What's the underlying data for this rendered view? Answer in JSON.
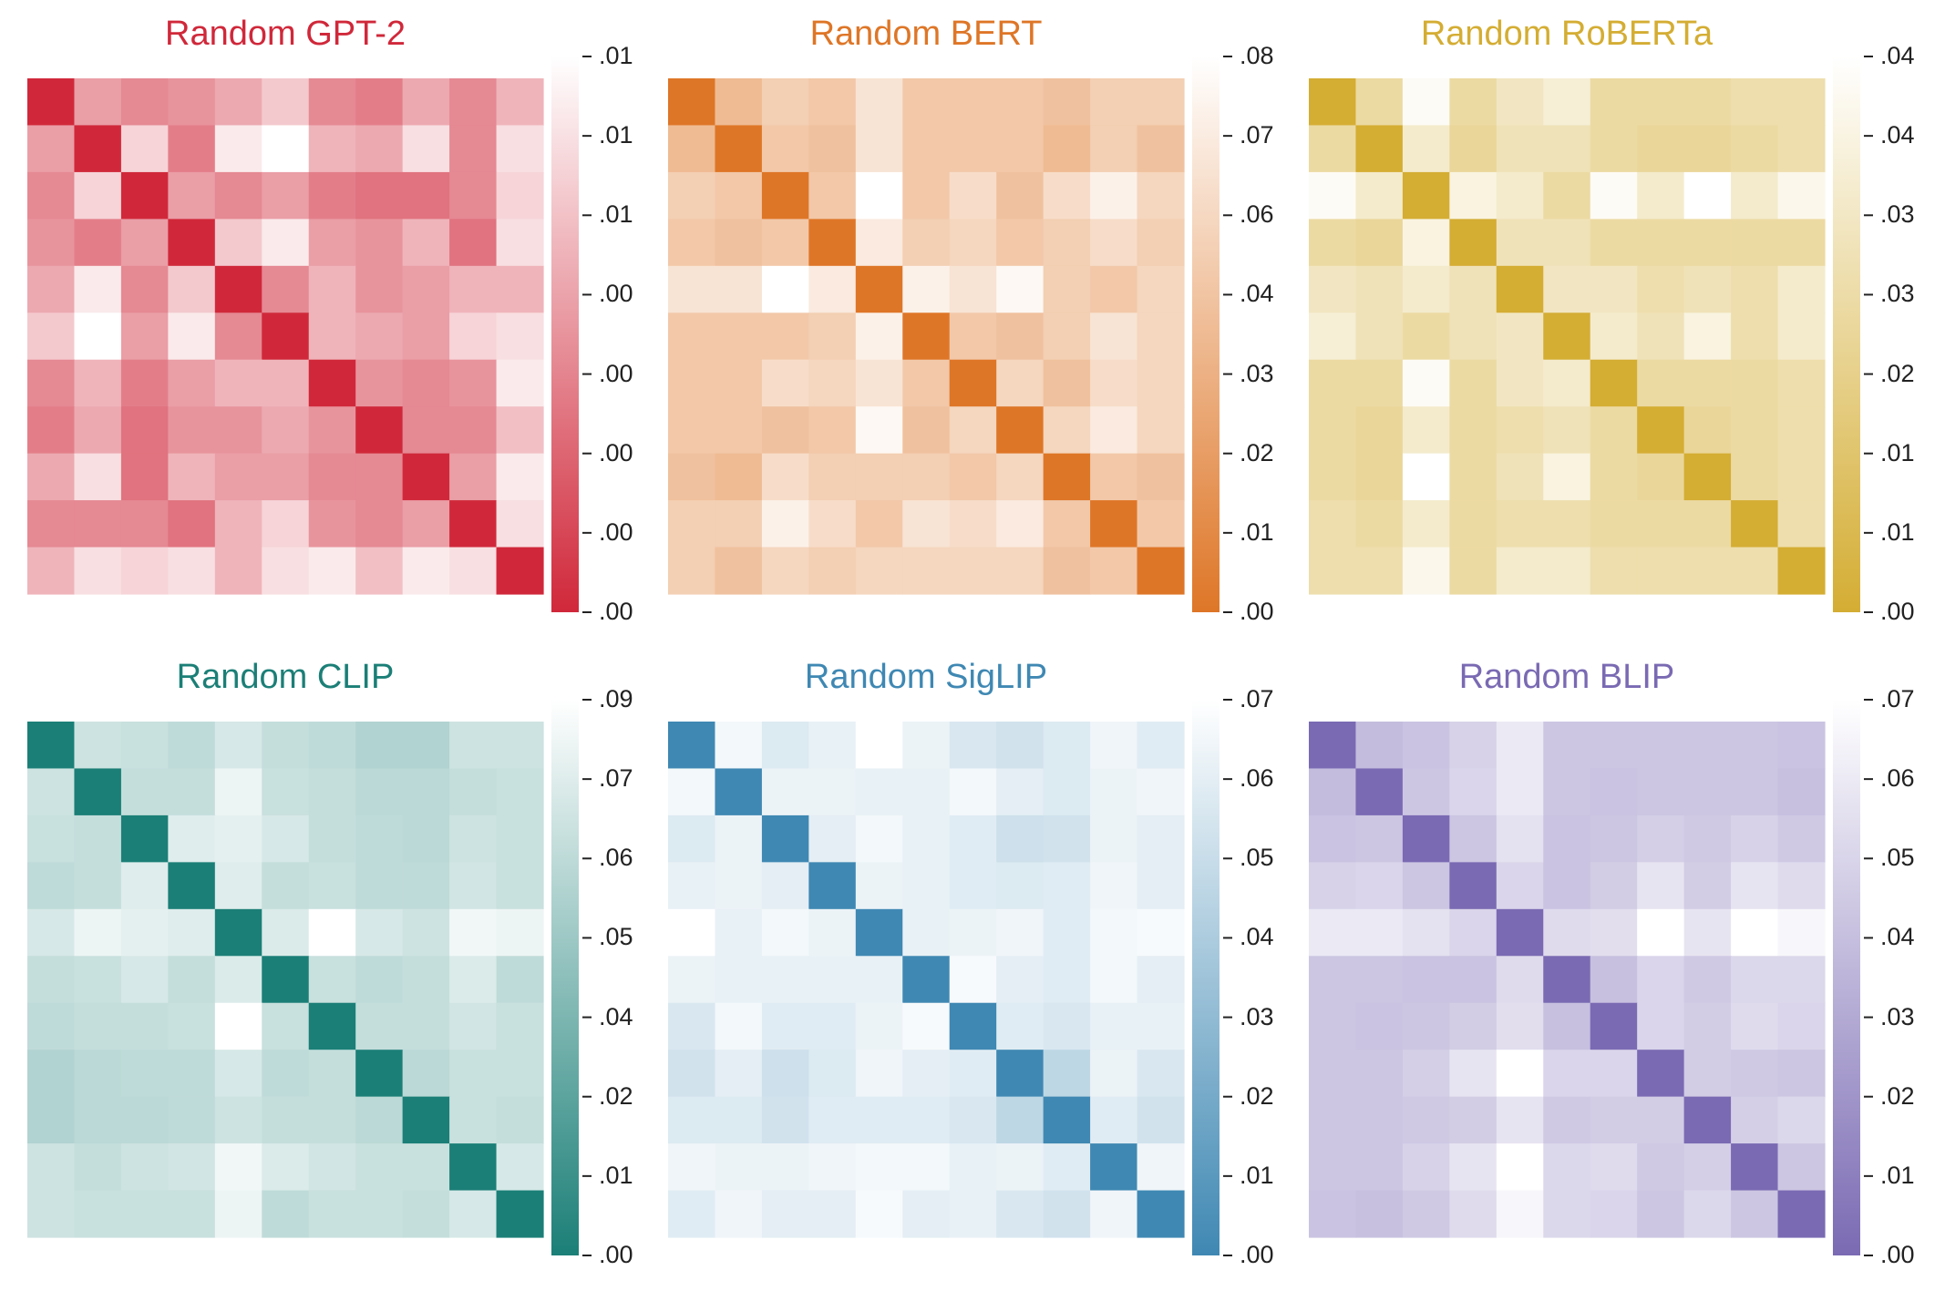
{
  "chart_data": [
    {
      "type": "heatmap",
      "title": "Random GPT-2",
      "color": "#d0283a",
      "colorbar_ticks": [
        ".01",
        ".01",
        ".01",
        ".00",
        ".00",
        ".00",
        ".00",
        ".00"
      ],
      "grid": [
        [
          0.0,
          0.55,
          0.45,
          0.5,
          0.6,
          0.75,
          0.45,
          0.4,
          0.6,
          0.45,
          0.65
        ],
        [
          0.55,
          0.0,
          0.8,
          0.4,
          0.9,
          1.0,
          0.65,
          0.6,
          0.85,
          0.45,
          0.85
        ],
        [
          0.45,
          0.8,
          0.0,
          0.55,
          0.45,
          0.55,
          0.4,
          0.35,
          0.35,
          0.45,
          0.8
        ],
        [
          0.5,
          0.4,
          0.55,
          0.0,
          0.75,
          0.9,
          0.55,
          0.5,
          0.65,
          0.35,
          0.85
        ],
        [
          0.6,
          0.9,
          0.45,
          0.75,
          0.0,
          0.45,
          0.65,
          0.5,
          0.55,
          0.65,
          0.65
        ],
        [
          0.75,
          1.0,
          0.55,
          0.9,
          0.45,
          0.0,
          0.65,
          0.6,
          0.55,
          0.8,
          0.85
        ],
        [
          0.45,
          0.65,
          0.4,
          0.55,
          0.65,
          0.65,
          0.0,
          0.5,
          0.45,
          0.5,
          0.9
        ],
        [
          0.4,
          0.6,
          0.35,
          0.5,
          0.5,
          0.6,
          0.5,
          0.0,
          0.45,
          0.45,
          0.7
        ],
        [
          0.6,
          0.85,
          0.35,
          0.65,
          0.55,
          0.55,
          0.45,
          0.45,
          0.0,
          0.55,
          0.9
        ],
        [
          0.45,
          0.45,
          0.45,
          0.35,
          0.65,
          0.8,
          0.5,
          0.45,
          0.55,
          0.0,
          0.85
        ],
        [
          0.65,
          0.85,
          0.8,
          0.85,
          0.65,
          0.85,
          0.9,
          0.7,
          0.9,
          0.85,
          0.0
        ]
      ]
    },
    {
      "type": "heatmap",
      "title": "Random BERT",
      "color": "#de7627",
      "colorbar_ticks": [
        ".08",
        ".07",
        ".06",
        ".04",
        ".03",
        ".02",
        ".01",
        ".00"
      ],
      "grid": [
        [
          0.0,
          0.5,
          0.65,
          0.6,
          0.8,
          0.6,
          0.6,
          0.6,
          0.55,
          0.65,
          0.65
        ],
        [
          0.5,
          0.0,
          0.6,
          0.55,
          0.8,
          0.6,
          0.6,
          0.6,
          0.5,
          0.65,
          0.55
        ],
        [
          0.65,
          0.6,
          0.0,
          0.6,
          1.0,
          0.6,
          0.75,
          0.55,
          0.75,
          0.9,
          0.7
        ],
        [
          0.6,
          0.55,
          0.6,
          0.0,
          0.85,
          0.65,
          0.7,
          0.6,
          0.65,
          0.75,
          0.65
        ],
        [
          0.8,
          0.8,
          1.0,
          0.85,
          0.0,
          0.9,
          0.8,
          0.95,
          0.65,
          0.6,
          0.7
        ],
        [
          0.6,
          0.6,
          0.6,
          0.65,
          0.9,
          0.0,
          0.6,
          0.55,
          0.65,
          0.8,
          0.7
        ],
        [
          0.6,
          0.6,
          0.75,
          0.7,
          0.8,
          0.6,
          0.0,
          0.7,
          0.55,
          0.75,
          0.7
        ],
        [
          0.6,
          0.6,
          0.55,
          0.6,
          0.95,
          0.55,
          0.7,
          0.0,
          0.7,
          0.85,
          0.7
        ],
        [
          0.55,
          0.5,
          0.75,
          0.65,
          0.65,
          0.65,
          0.6,
          0.7,
          0.0,
          0.6,
          0.55
        ],
        [
          0.65,
          0.65,
          0.9,
          0.75,
          0.6,
          0.8,
          0.75,
          0.85,
          0.6,
          0.0,
          0.6
        ],
        [
          0.65,
          0.55,
          0.7,
          0.65,
          0.7,
          0.7,
          0.7,
          0.7,
          0.55,
          0.6,
          0.0
        ]
      ]
    },
    {
      "type": "heatmap",
      "title": "Random RoBERTa",
      "color": "#d4ad33",
      "colorbar_ticks": [
        ".04",
        ".04",
        ".03",
        ".03",
        ".02",
        ".01",
        ".01",
        ".00"
      ],
      "grid": [
        [
          0.0,
          0.55,
          0.95,
          0.55,
          0.7,
          0.8,
          0.55,
          0.55,
          0.55,
          0.6,
          0.6
        ],
        [
          0.55,
          0.0,
          0.75,
          0.5,
          0.65,
          0.65,
          0.55,
          0.5,
          0.5,
          0.55,
          0.6
        ],
        [
          0.95,
          0.75,
          0.0,
          0.85,
          0.75,
          0.55,
          0.95,
          0.75,
          1.0,
          0.75,
          0.9
        ],
        [
          0.55,
          0.5,
          0.85,
          0.0,
          0.65,
          0.65,
          0.55,
          0.55,
          0.55,
          0.55,
          0.55
        ],
        [
          0.7,
          0.65,
          0.75,
          0.65,
          0.0,
          0.7,
          0.7,
          0.6,
          0.65,
          0.6,
          0.75
        ],
        [
          0.8,
          0.65,
          0.55,
          0.65,
          0.7,
          0.0,
          0.75,
          0.65,
          0.85,
          0.6,
          0.75
        ],
        [
          0.55,
          0.55,
          0.95,
          0.55,
          0.7,
          0.75,
          0.0,
          0.55,
          0.55,
          0.55,
          0.6
        ],
        [
          0.55,
          0.5,
          0.75,
          0.55,
          0.6,
          0.65,
          0.55,
          0.0,
          0.5,
          0.55,
          0.6
        ],
        [
          0.55,
          0.5,
          1.0,
          0.55,
          0.65,
          0.85,
          0.55,
          0.5,
          0.0,
          0.55,
          0.6
        ],
        [
          0.6,
          0.55,
          0.75,
          0.55,
          0.6,
          0.6,
          0.55,
          0.55,
          0.55,
          0.0,
          0.6
        ],
        [
          0.6,
          0.6,
          0.9,
          0.55,
          0.75,
          0.75,
          0.6,
          0.6,
          0.6,
          0.6,
          0.0
        ]
      ]
    },
    {
      "type": "heatmap",
      "title": "Random CLIP",
      "color": "#1b7f77",
      "colorbar_ticks": [
        ".09",
        ".07",
        ".06",
        ".05",
        ".04",
        ".02",
        ".01",
        ".00"
      ],
      "grid": [
        [
          0.0,
          0.78,
          0.76,
          0.72,
          0.82,
          0.74,
          0.72,
          0.66,
          0.66,
          0.78,
          0.78
        ],
        [
          0.78,
          0.0,
          0.74,
          0.74,
          0.92,
          0.76,
          0.74,
          0.7,
          0.7,
          0.74,
          0.76
        ],
        [
          0.76,
          0.74,
          0.0,
          0.86,
          0.88,
          0.82,
          0.74,
          0.72,
          0.7,
          0.78,
          0.76
        ],
        [
          0.72,
          0.74,
          0.86,
          0.0,
          0.86,
          0.74,
          0.76,
          0.72,
          0.72,
          0.8,
          0.76
        ],
        [
          0.82,
          0.92,
          0.88,
          0.86,
          0.0,
          0.84,
          1.0,
          0.82,
          0.78,
          0.94,
          0.92
        ],
        [
          0.74,
          0.76,
          0.82,
          0.74,
          0.84,
          0.0,
          0.76,
          0.72,
          0.74,
          0.84,
          0.72
        ],
        [
          0.72,
          0.74,
          0.74,
          0.76,
          1.0,
          0.76,
          0.0,
          0.74,
          0.74,
          0.8,
          0.76
        ],
        [
          0.66,
          0.7,
          0.72,
          0.72,
          0.82,
          0.72,
          0.74,
          0.0,
          0.7,
          0.76,
          0.76
        ],
        [
          0.66,
          0.7,
          0.7,
          0.72,
          0.78,
          0.74,
          0.74,
          0.7,
          0.0,
          0.76,
          0.74
        ],
        [
          0.78,
          0.74,
          0.78,
          0.8,
          0.94,
          0.84,
          0.8,
          0.76,
          0.76,
          0.0,
          0.82
        ],
        [
          0.78,
          0.76,
          0.76,
          0.76,
          0.92,
          0.72,
          0.76,
          0.76,
          0.74,
          0.82,
          0.0
        ]
      ]
    },
    {
      "type": "heatmap",
      "title": "Random SigLIP",
      "color": "#3f88b3",
      "colorbar_ticks": [
        ".07",
        ".06",
        ".05",
        ".04",
        ".03",
        ".02",
        ".01",
        ".00"
      ],
      "grid": [
        [
          0.0,
          0.94,
          0.82,
          0.88,
          1.0,
          0.9,
          0.8,
          0.76,
          0.82,
          0.92,
          0.84
        ],
        [
          0.94,
          0.0,
          0.9,
          0.9,
          0.88,
          0.88,
          0.94,
          0.86,
          0.82,
          0.9,
          0.92
        ],
        [
          0.82,
          0.9,
          0.0,
          0.86,
          0.94,
          0.88,
          0.84,
          0.74,
          0.76,
          0.9,
          0.86
        ],
        [
          0.88,
          0.9,
          0.86,
          0.0,
          0.9,
          0.88,
          0.84,
          0.82,
          0.84,
          0.92,
          0.86
        ],
        [
          1.0,
          0.88,
          0.94,
          0.9,
          0.0,
          0.88,
          0.9,
          0.92,
          0.84,
          0.94,
          0.96
        ],
        [
          0.9,
          0.88,
          0.88,
          0.88,
          0.88,
          0.0,
          0.96,
          0.86,
          0.84,
          0.94,
          0.86
        ],
        [
          0.8,
          0.94,
          0.84,
          0.84,
          0.9,
          0.96,
          0.0,
          0.84,
          0.8,
          0.88,
          0.88
        ],
        [
          0.76,
          0.86,
          0.74,
          0.82,
          0.92,
          0.86,
          0.84,
          0.0,
          0.66,
          0.9,
          0.8
        ],
        [
          0.82,
          0.82,
          0.76,
          0.84,
          0.84,
          0.84,
          0.8,
          0.66,
          0.0,
          0.84,
          0.76
        ],
        [
          0.92,
          0.9,
          0.9,
          0.92,
          0.94,
          0.94,
          0.88,
          0.9,
          0.84,
          0.0,
          0.92
        ],
        [
          0.84,
          0.92,
          0.86,
          0.86,
          0.96,
          0.86,
          0.88,
          0.8,
          0.76,
          0.92,
          0.0
        ]
      ]
    },
    {
      "type": "heatmap",
      "title": "Random BLIP",
      "color": "#7a6ab3",
      "colorbar_ticks": [
        ".07",
        ".06",
        ".05",
        ".04",
        ".03",
        ".02",
        ".01",
        ".00"
      ],
      "grid": [
        [
          0.0,
          0.55,
          0.6,
          0.7,
          0.85,
          0.62,
          0.62,
          0.62,
          0.62,
          0.62,
          0.6
        ],
        [
          0.55,
          0.0,
          0.62,
          0.72,
          0.85,
          0.62,
          0.6,
          0.62,
          0.62,
          0.62,
          0.58
        ],
        [
          0.6,
          0.62,
          0.0,
          0.62,
          0.8,
          0.6,
          0.62,
          0.68,
          0.64,
          0.7,
          0.64
        ],
        [
          0.7,
          0.72,
          0.62,
          0.0,
          0.72,
          0.6,
          0.66,
          0.82,
          0.66,
          0.82,
          0.76
        ],
        [
          0.85,
          0.85,
          0.8,
          0.72,
          0.0,
          0.76,
          0.78,
          1.0,
          0.82,
          1.0,
          0.94
        ],
        [
          0.62,
          0.62,
          0.6,
          0.6,
          0.76,
          0.0,
          0.58,
          0.72,
          0.64,
          0.74,
          0.74
        ],
        [
          0.62,
          0.6,
          0.62,
          0.66,
          0.78,
          0.58,
          0.0,
          0.72,
          0.66,
          0.76,
          0.72
        ],
        [
          0.62,
          0.62,
          0.68,
          0.82,
          1.0,
          0.72,
          0.72,
          0.0,
          0.66,
          0.64,
          0.62
        ],
        [
          0.62,
          0.62,
          0.64,
          0.66,
          0.82,
          0.64,
          0.66,
          0.66,
          0.0,
          0.68,
          0.74
        ],
        [
          0.62,
          0.62,
          0.7,
          0.82,
          1.0,
          0.74,
          0.76,
          0.64,
          0.68,
          0.0,
          0.62
        ],
        [
          0.6,
          0.58,
          0.64,
          0.76,
          0.94,
          0.74,
          0.72,
          0.62,
          0.74,
          0.62,
          0.0
        ]
      ]
    }
  ]
}
